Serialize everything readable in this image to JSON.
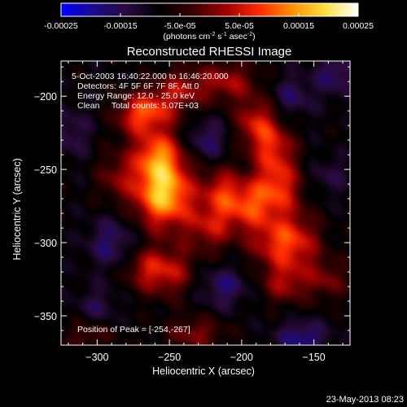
{
  "chart_data": {
    "type": "heatmap",
    "title": "Reconstructed RHESSI Image",
    "xlabel": "Heliocentric X (arcsec)",
    "ylabel": "Heliocentric Y (arcsec)",
    "xlim": [
      -325,
      -125
    ],
    "ylim": [
      -370,
      -176
    ],
    "x_ticks": [
      -300,
      -250,
      -200,
      -150
    ],
    "y_ticks": [
      -200,
      -250,
      -300,
      -350
    ],
    "colorbar": {
      "range": [
        -0.00025,
        0.00025
      ],
      "ticks": [
        "-0.00025",
        "-0.00015",
        "-5.0e-05",
        "5.0e-05",
        "0.00015",
        "0.00025"
      ],
      "tick_values": [
        -0.00025,
        -0.00015,
        -5e-05,
        5e-05,
        0.00015,
        0.00025
      ],
      "unit_main": "(photons cm",
      "unit_sup1": "-2",
      "unit_s": " s",
      "unit_sup2": "-1",
      "unit_asec": " asec",
      "unit_sup3": "-2",
      "unit_close": ")",
      "colors": [
        "#0000ff",
        "#1a0a8c",
        "#2a0a3c",
        "#000000",
        "#3a0000",
        "#a00000",
        "#ff2a00",
        "#ff9000",
        "#ffe040",
        "#ffffff"
      ]
    },
    "info_lines": [
      "5-Oct-2003 16:40:22.000 to 16:46:20.000",
      "Detectors: 4F 5F 6F 7F 8F, Att 0",
      "Energy Range: 12.0 - 25.0 keV",
      "Clean     Total counts: 5.07E+03"
    ],
    "peak_label": "Position of Peak = [-254,-267]",
    "sources": [
      {
        "x": -254,
        "y": -267,
        "sx": 14,
        "sy": 16,
        "a": 0.00026
      },
      {
        "x": -258,
        "y": -240,
        "sx": 12,
        "sy": 12,
        "a": 0.00017
      },
      {
        "x": -262,
        "y": -210,
        "sx": 12,
        "sy": 10,
        "a": 0.00014
      },
      {
        "x": -242,
        "y": -195,
        "sx": 12,
        "sy": 10,
        "a": 0.0001
      },
      {
        "x": -276,
        "y": -214,
        "sx": 10,
        "sy": 10,
        "a": 8e-05
      },
      {
        "x": -210,
        "y": -190,
        "sx": 14,
        "sy": 10,
        "a": 0.00011
      },
      {
        "x": -190,
        "y": -218,
        "sx": 10,
        "sy": 12,
        "a": 0.00013
      },
      {
        "x": -178,
        "y": -235,
        "sx": 10,
        "sy": 12,
        "a": 0.00012
      },
      {
        "x": -175,
        "y": -262,
        "sx": 12,
        "sy": 14,
        "a": 0.00015
      },
      {
        "x": -195,
        "y": -275,
        "sx": 12,
        "sy": 12,
        "a": 0.00014
      },
      {
        "x": -214,
        "y": -265,
        "sx": 10,
        "sy": 12,
        "a": 0.00012
      },
      {
        "x": -222,
        "y": -290,
        "sx": 12,
        "sy": 12,
        "a": 0.00011
      },
      {
        "x": -162,
        "y": -300,
        "sx": 12,
        "sy": 14,
        "a": 0.00013
      },
      {
        "x": -180,
        "y": -300,
        "sx": 12,
        "sy": 12,
        "a": 0.0001
      },
      {
        "x": -170,
        "y": -328,
        "sx": 12,
        "sy": 10,
        "a": 0.0001
      },
      {
        "x": -140,
        "y": -325,
        "sx": 10,
        "sy": 10,
        "a": 8e-05
      },
      {
        "x": -250,
        "y": -320,
        "sx": 12,
        "sy": 12,
        "a": 0.00012
      },
      {
        "x": -268,
        "y": -318,
        "sx": 10,
        "sy": 10,
        "a": 9e-05
      },
      {
        "x": -286,
        "y": -255,
        "sx": 10,
        "sy": 12,
        "a": 8e-05
      },
      {
        "x": -232,
        "y": -362,
        "sx": 14,
        "sy": 8,
        "a": 9e-05
      },
      {
        "x": -305,
        "y": -362,
        "sx": 12,
        "sy": 8,
        "a": 7e-05
      },
      {
        "x": -300,
        "y": -345,
        "sx": 10,
        "sy": 10,
        "a": -6e-05
      },
      {
        "x": -135,
        "y": -185,
        "sx": 10,
        "sy": 10,
        "a": -8e-05
      },
      {
        "x": -165,
        "y": -200,
        "sx": 10,
        "sy": 10,
        "a": -7e-05
      },
      {
        "x": -224,
        "y": -230,
        "sx": 10,
        "sy": 10,
        "a": -8e-05
      },
      {
        "x": -290,
        "y": -300,
        "sx": 12,
        "sy": 12,
        "a": -8e-05
      },
      {
        "x": -212,
        "y": -330,
        "sx": 12,
        "sy": 10,
        "a": -8e-05
      },
      {
        "x": -158,
        "y": -365,
        "sx": 12,
        "sy": 8,
        "a": -0.0001
      },
      {
        "x": -318,
        "y": -225,
        "sx": 10,
        "sy": 12,
        "a": -6e-05
      },
      {
        "x": -140,
        "y": -255,
        "sx": 10,
        "sy": 10,
        "a": -5e-05
      }
    ]
  },
  "footer": {
    "timestamp": "23-May-2013 08:23"
  }
}
